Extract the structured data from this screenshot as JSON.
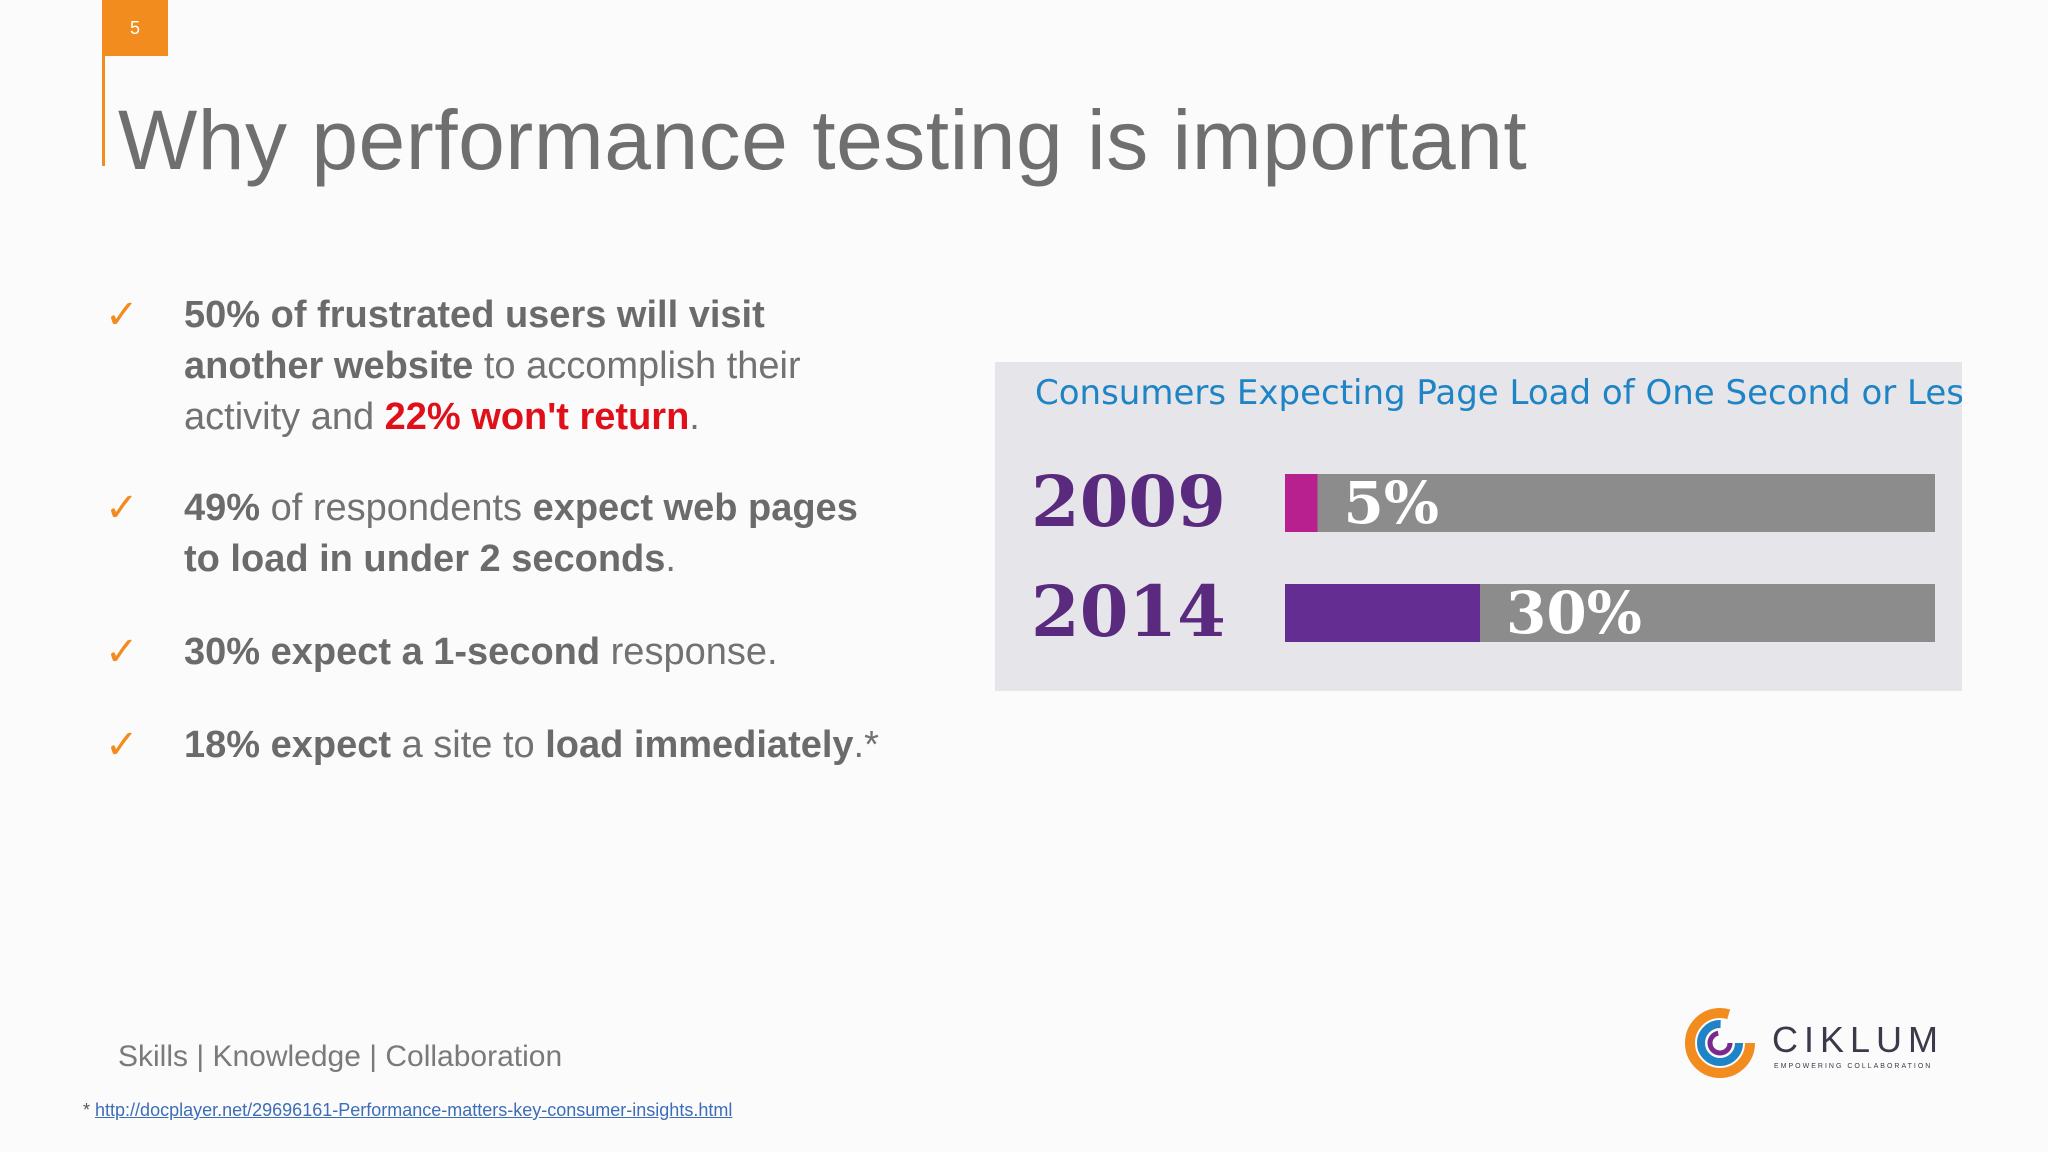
{
  "slide": {
    "number": "5",
    "title": "Why performance testing is important",
    "tagline": "Skills | Knowledge | Collaboration",
    "footnote_marker": "*",
    "footnote_link": "http://docplayer.net/29696161-Performance-matters-key-consumer-insights.html"
  },
  "bullets": {
    "check_symbol": "✓",
    "b1": {
      "bold1": "50% of frustrated users will visit another website",
      "text1": " to accomplish their activity and ",
      "red": "22% won't return",
      "text2": "."
    },
    "b2": {
      "bold1": "49%",
      "text1": " of respondents ",
      "bold2": "expect web pages to load in under 2 seconds",
      "text2": "."
    },
    "b3": {
      "bold1": "30% expect a 1-second",
      "text1": " response."
    },
    "b4": {
      "bold1": "18% expect",
      "text1": " a site to ",
      "bold2": "load immediately",
      "text2": ".*"
    }
  },
  "logo": {
    "name": "CIKLUM",
    "tagline": "EMPOWERING COLLABORATION"
  },
  "colors": {
    "accent_orange": "#f28c1f",
    "title_gray": "#6f6f6f",
    "highlight_red": "#e0101a",
    "chart_title_blue": "#1f84c6",
    "bar_2009": "#b8208f",
    "bar_2014": "#642d91",
    "bar_track": "#8c8c8c",
    "year_label": "#5a2a7e"
  },
  "chart_data": {
    "type": "bar",
    "orientation": "horizontal",
    "stacked_with_remainder": true,
    "title": "Consumers Expecting Page Load of One Second or Less",
    "categories": [
      "2009",
      "2014"
    ],
    "values": [
      5,
      30
    ],
    "value_labels": [
      "5%",
      "30%"
    ],
    "unit": "%",
    "xlim": [
      0,
      100
    ],
    "bar_colors": [
      "#b8208f",
      "#642d91"
    ],
    "remainder_color": "#8c8c8c",
    "grid": false,
    "legend": "none"
  }
}
